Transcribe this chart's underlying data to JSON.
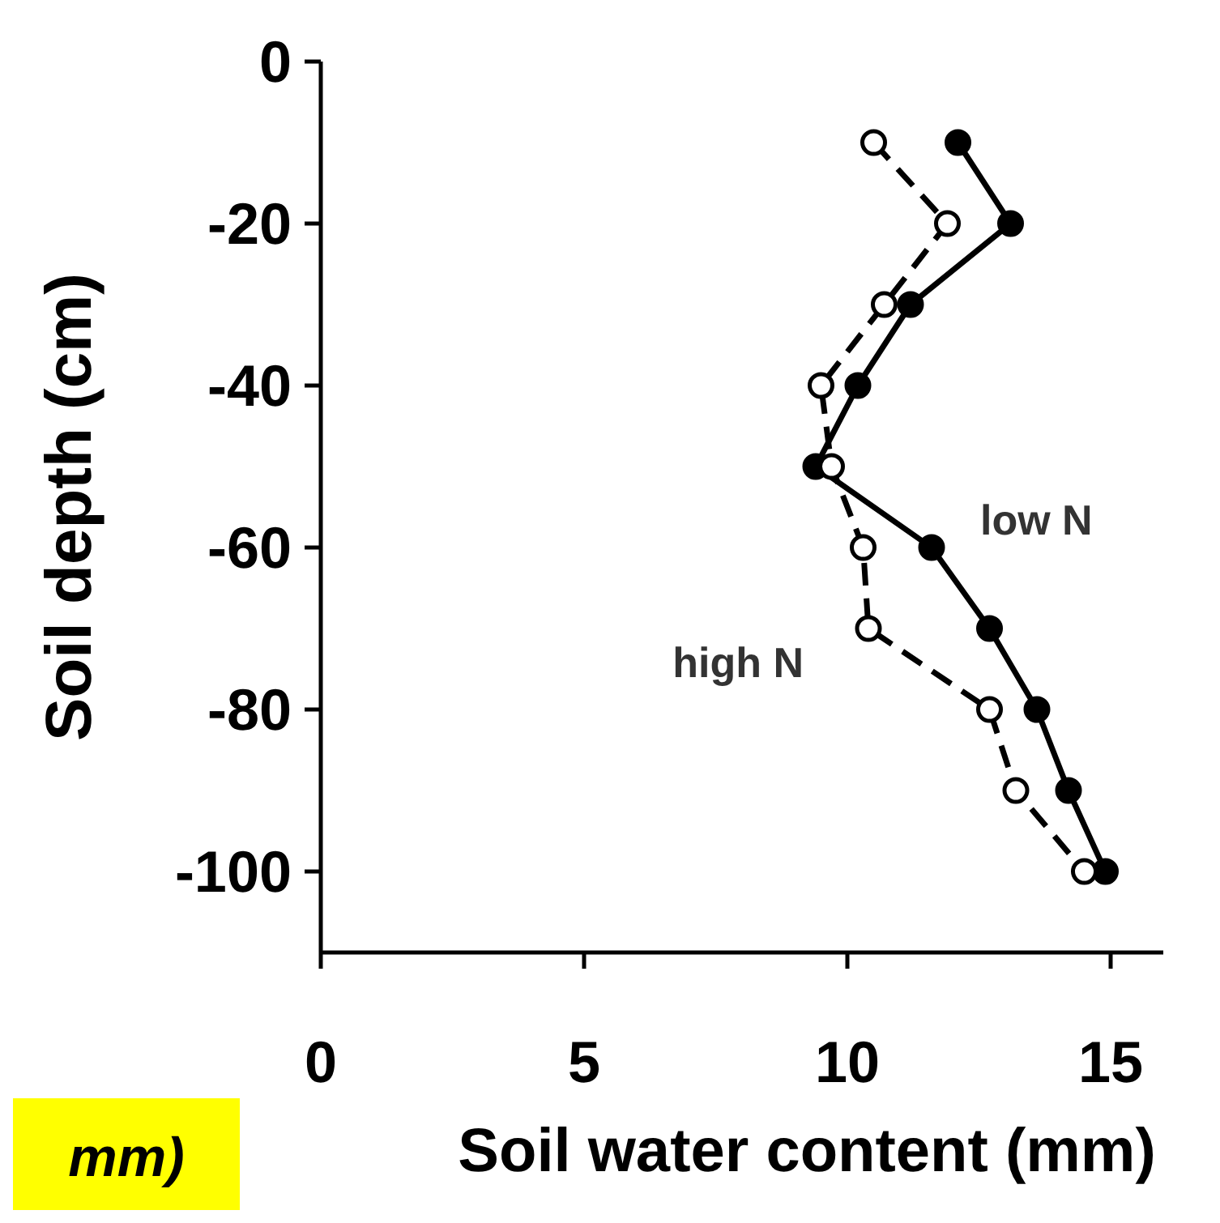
{
  "chart_data": {
    "type": "line",
    "xlabel": "Soil water content (mm)",
    "ylabel": "Soil depth (cm)",
    "annotations": [
      "mm)"
    ],
    "series": [
      {
        "name": "low N",
        "color": "#000000",
        "marker": "circle",
        "line_style": "solid",
        "x": [
          12.1,
          13.1,
          11.2,
          10.2,
          9.4,
          11.6,
          12.7,
          13.6,
          14.2,
          14.9
        ],
        "values": [
          -10,
          -20,
          -30,
          -40,
          -50,
          -60,
          -70,
          -80,
          -90,
          -100
        ]
      },
      {
        "name": "high N",
        "color": "#ffffff",
        "marker": "circle",
        "line_style": "dashed",
        "x": [
          10.5,
          11.9,
          10.7,
          9.5,
          9.7,
          10.3,
          10.4,
          12.7,
          13.2,
          14.5
        ],
        "values": [
          -10,
          -20,
          -30,
          -40,
          -50,
          -60,
          -70,
          -80,
          -90,
          -100
        ]
      }
    ],
    "xlim": [
      0,
      16
    ],
    "xticks": [
      0,
      5,
      10,
      15
    ],
    "ylim": [
      -110,
      0
    ],
    "yticks": [
      0,
      -20,
      -40,
      -60,
      -80,
      -100
    ],
    "grid": false
  }
}
